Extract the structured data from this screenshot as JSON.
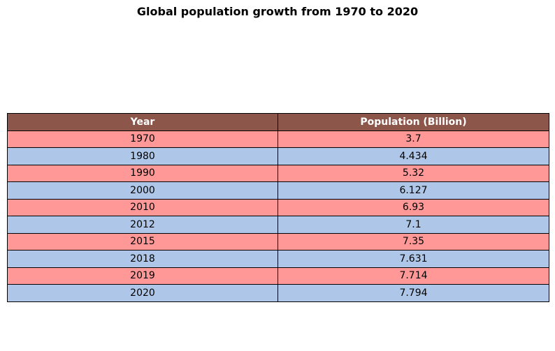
{
  "title": "Global population growth from 1970 to 2020",
  "colors": {
    "header_bg": "#8c564b",
    "header_text": "#ffffff",
    "row_odd": "#ff9896",
    "row_even": "#aec7e8",
    "border": "#000000"
  },
  "chart_data": {
    "type": "table",
    "title": "Global population growth from 1970 to 2020",
    "columns": [
      "Year",
      "Population (Billion)"
    ],
    "rows": [
      [
        "1970",
        "3.7"
      ],
      [
        "1980",
        "4.434"
      ],
      [
        "1990",
        "5.32"
      ],
      [
        "2000",
        "6.127"
      ],
      [
        "2010",
        "6.93"
      ],
      [
        "2012",
        "7.1"
      ],
      [
        "2015",
        "7.35"
      ],
      [
        "2018",
        "7.631"
      ],
      [
        "2019",
        "7.714"
      ],
      [
        "2020",
        "7.794"
      ]
    ]
  }
}
